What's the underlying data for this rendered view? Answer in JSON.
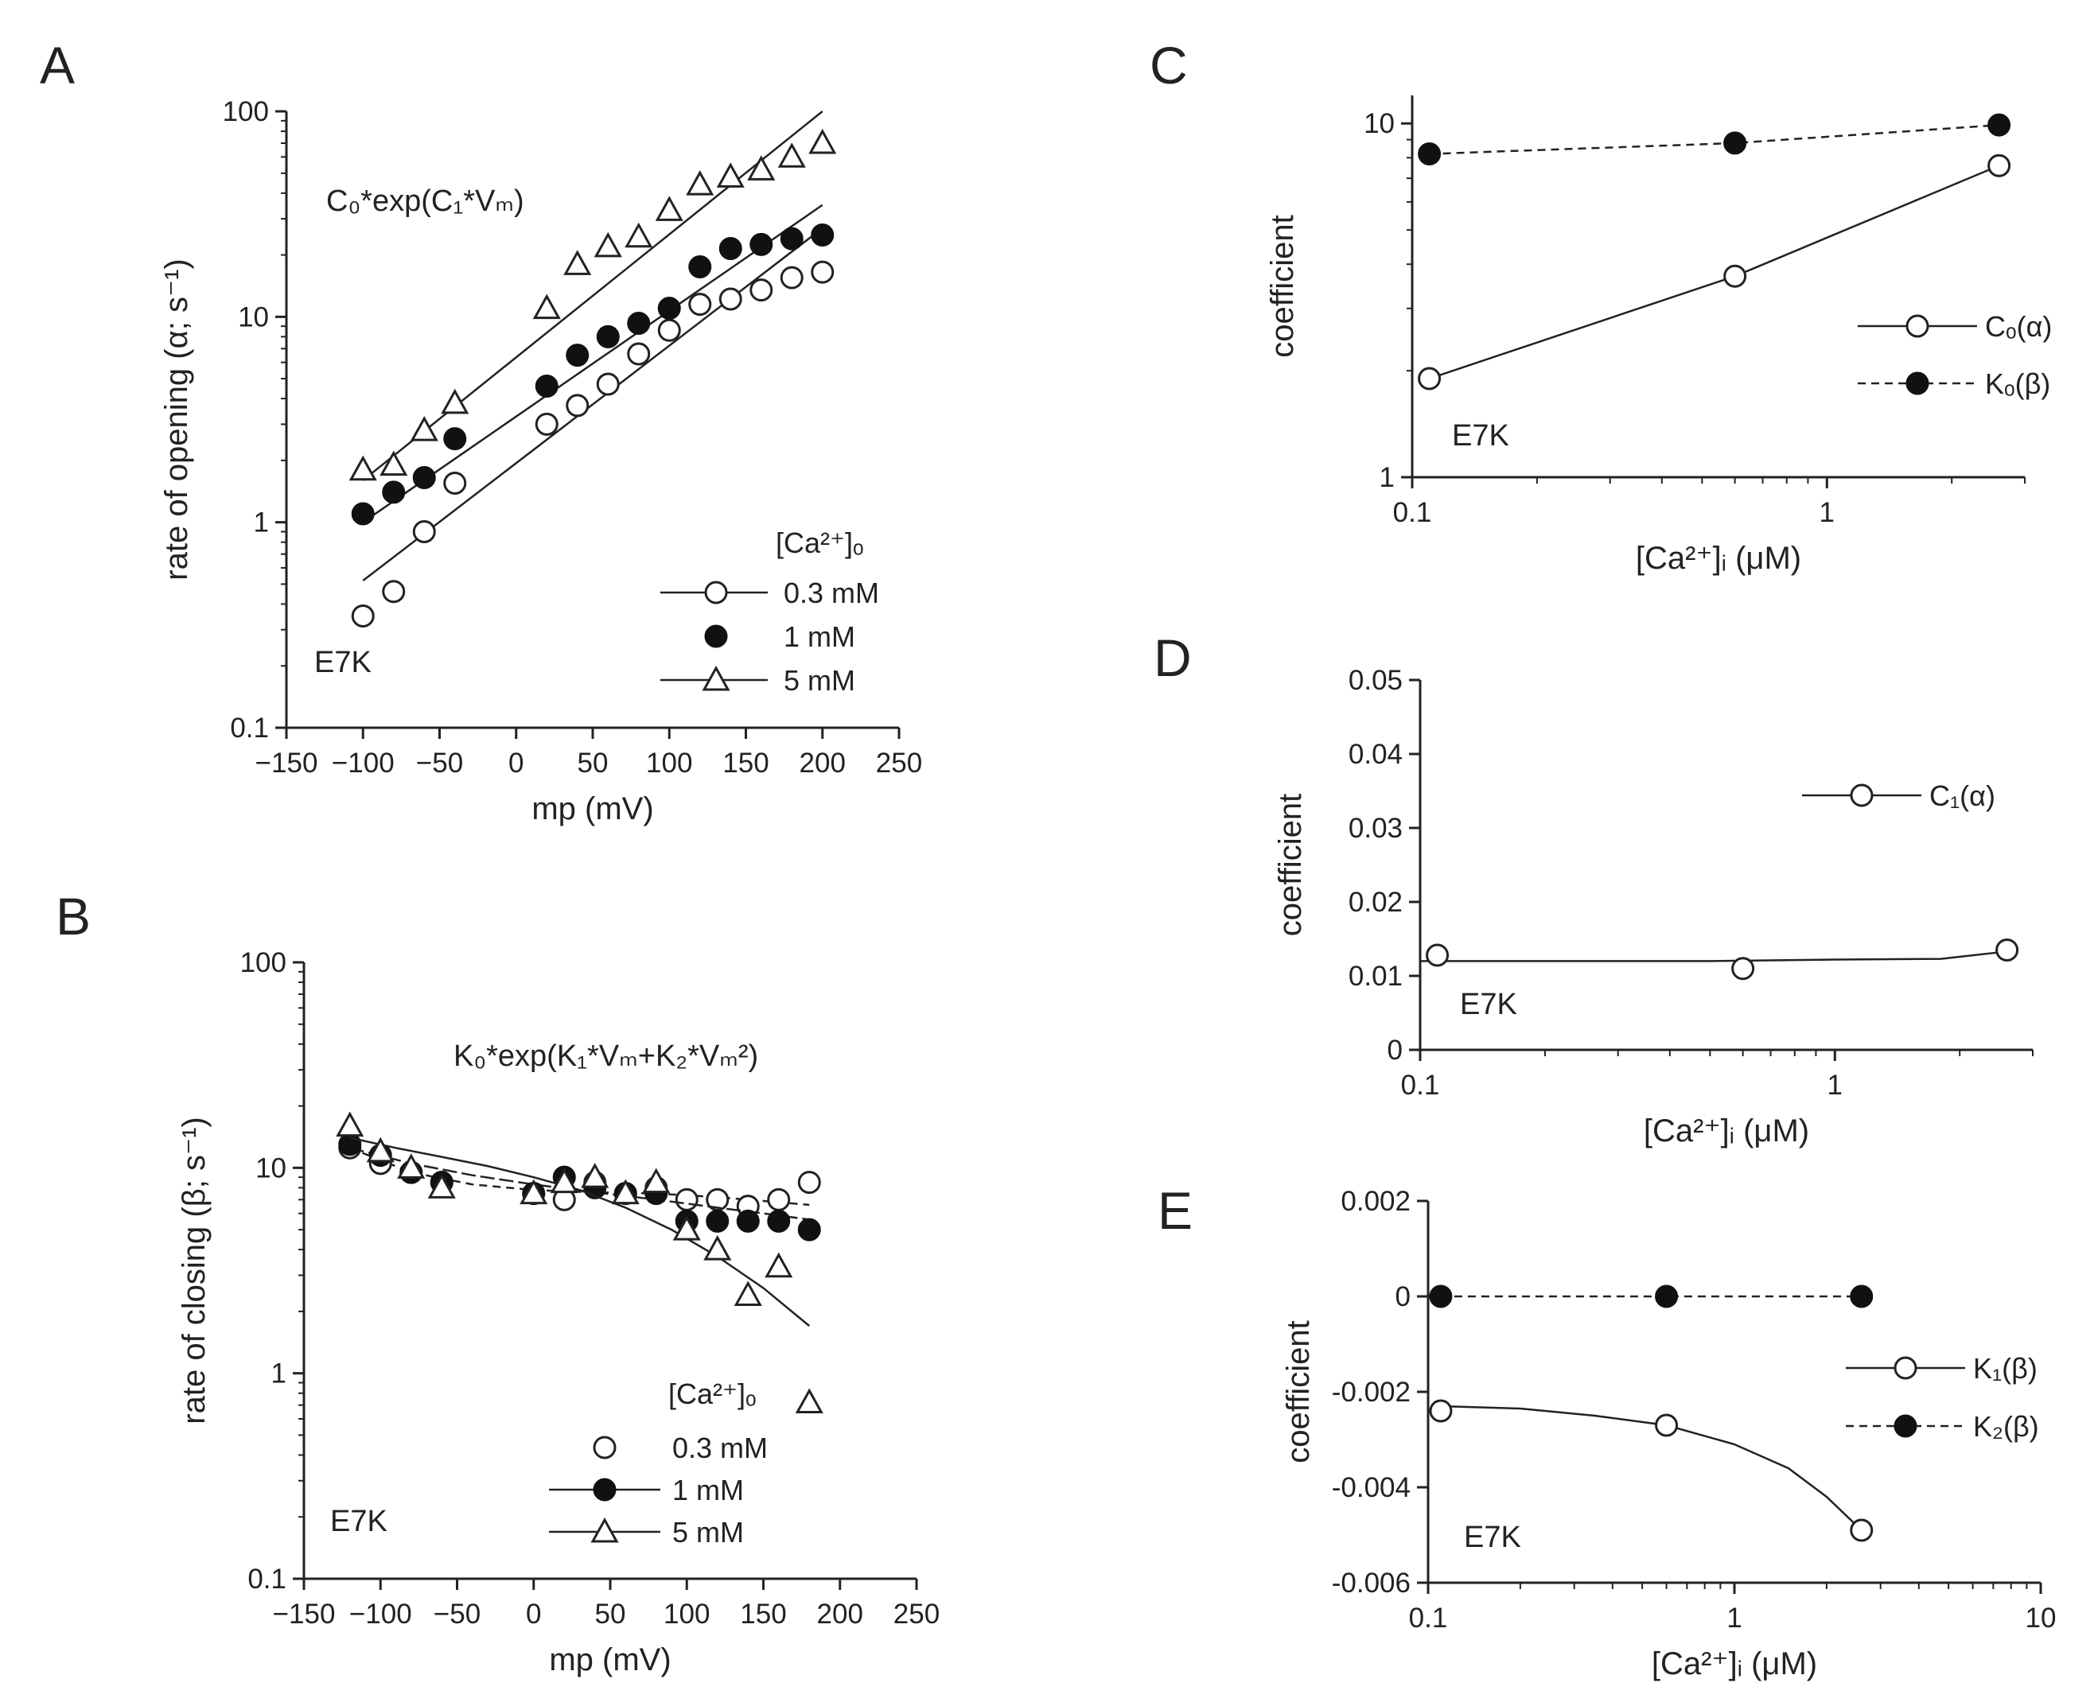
{
  "chart_data": [
    {
      "panel": "A",
      "type": "scatter",
      "yscale": "log",
      "xlim": [
        -150,
        250
      ],
      "ylim": [
        0.1,
        100
      ],
      "xticks": [
        -150,
        -100,
        -50,
        0,
        50,
        100,
        150,
        200,
        250
      ],
      "yticks": [
        0.1,
        1,
        10,
        100
      ],
      "xlabel": "mp (mV)",
      "ylabel": "rate of opening (α; s⁻¹)",
      "equation": "C0*exp(C1*Vm)",
      "legend_title": "[Ca2+]o",
      "annotation": "E7K",
      "series": [
        {
          "name": "0.3 mM",
          "marker": "open-circle",
          "fit": "line",
          "x": [
            -100,
            -80,
            -60,
            -40,
            20,
            40,
            60,
            80,
            100,
            120,
            140,
            160,
            180,
            200
          ],
          "y": [
            0.35,
            0.46,
            0.9,
            1.55,
            3.0,
            3.7,
            4.7,
            6.6,
            8.6,
            11.5,
            12.2,
            13.5,
            15.5,
            16.5
          ],
          "fit_x": [
            -100,
            200
          ],
          "fit_y": [
            0.52,
            27
          ]
        },
        {
          "name": "1 mM",
          "marker": "filled-circle",
          "fit": "line",
          "x": [
            -100,
            -80,
            -60,
            -40,
            20,
            40,
            60,
            80,
            100,
            120,
            140,
            160,
            180,
            200
          ],
          "y": [
            1.1,
            1.4,
            1.65,
            2.55,
            4.6,
            6.5,
            8.0,
            9.3,
            11.0,
            17.5,
            21.5,
            22.5,
            24.0,
            25.0
          ],
          "fit_x": [
            -100,
            200
          ],
          "fit_y": [
            1.0,
            35
          ]
        },
        {
          "name": "5 mM",
          "marker": "open-triangle",
          "fit": "line",
          "x": [
            -100,
            -80,
            -60,
            -40,
            20,
            40,
            60,
            80,
            100,
            120,
            140,
            160,
            180,
            200
          ],
          "y": [
            1.8,
            1.9,
            2.8,
            3.8,
            11.0,
            18.0,
            22.0,
            24.5,
            33.0,
            44.0,
            48.0,
            52.0,
            60.0,
            70.0
          ],
          "fit_x": [
            -100,
            200
          ],
          "fit_y": [
            1.6,
            100
          ]
        }
      ]
    },
    {
      "panel": "B",
      "type": "scatter",
      "yscale": "log",
      "xlim": [
        -150,
        250
      ],
      "ylim": [
        0.1,
        100
      ],
      "xticks": [
        -150,
        -100,
        -50,
        0,
        50,
        100,
        150,
        200,
        250
      ],
      "yticks": [
        0.1,
        1,
        10,
        100
      ],
      "xlabel": "mp (mV)",
      "ylabel": "rate of closing (β; s⁻¹)",
      "equation": "K0*exp(K1*Vm+K2*Vm^2)",
      "legend_title": "[Ca2+]o",
      "annotation": "E7K",
      "series": [
        {
          "name": "0.3 mM",
          "marker": "open-circle",
          "fit": "dashed",
          "x": [
            -120,
            -100,
            -80,
            -60,
            0,
            20,
            40,
            60,
            80,
            100,
            120,
            140,
            160,
            180
          ],
          "y": [
            12.5,
            10.5,
            9.5,
            8.5,
            7.5,
            7.0,
            8.5,
            7.5,
            8.0,
            7.0,
            7.0,
            6.5,
            7.0,
            8.5
          ],
          "fit_x": [
            -120,
            -80,
            -40,
            0,
            40,
            80,
            120,
            150,
            180
          ],
          "fit_y": [
            12.5,
            9.5,
            8.3,
            7.8,
            7.6,
            7.5,
            7.2,
            6.9,
            6.6
          ]
        },
        {
          "name": "1 mM",
          "marker": "filled-circle",
          "fit": "line-dashed",
          "x": [
            -120,
            -100,
            -80,
            -60,
            0,
            20,
            40,
            60,
            80,
            100,
            120,
            140,
            160,
            180
          ],
          "y": [
            13.0,
            11.5,
            9.5,
            8.5,
            7.5,
            9.0,
            8.0,
            7.5,
            7.5,
            5.5,
            5.5,
            5.5,
            5.5,
            5.0
          ],
          "fit_x": [
            -120,
            -80,
            -40,
            0,
            40,
            80,
            120,
            150,
            180
          ],
          "fit_y": [
            12.5,
            10.5,
            9.2,
            8.3,
            7.6,
            7.0,
            6.4,
            6.0,
            5.6
          ]
        },
        {
          "name": "5 mM",
          "marker": "open-triangle",
          "fit": "line",
          "x": [
            -120,
            -100,
            -80,
            -60,
            0,
            20,
            40,
            60,
            80,
            100,
            120,
            140,
            160,
            180
          ],
          "y": [
            16.0,
            12.0,
            10.0,
            8.0,
            7.5,
            8.5,
            9.0,
            7.5,
            8.5,
            5.0,
            4.0,
            2.4,
            3.3,
            0.72
          ],
          "fit_x": [
            -120,
            -90,
            -60,
            -30,
            0,
            30,
            60,
            90,
            120,
            150,
            180
          ],
          "fit_y": [
            14.0,
            12.5,
            11.3,
            10.2,
            9.0,
            7.8,
            6.4,
            5.0,
            3.7,
            2.6,
            1.7
          ]
        }
      ]
    },
    {
      "panel": "C",
      "type": "line",
      "xscale": "log",
      "yscale": "log",
      "xlim": [
        0.1,
        3
      ],
      "ylim": [
        1,
        12
      ],
      "xticks": [
        0.1,
        1
      ],
      "yticks": [
        1,
        10
      ],
      "xlabel": "[Ca2+]i (μM)",
      "ylabel": "coefficient",
      "annotation": "E7K",
      "series": [
        {
          "name": "Co(α)",
          "marker": "open-circle",
          "line": "solid",
          "x": [
            0.11,
            0.6,
            2.6
          ],
          "y": [
            1.9,
            3.7,
            7.6
          ]
        },
        {
          "name": "Ko(β)",
          "marker": "filled-circle",
          "line": "dashed",
          "x": [
            0.11,
            0.6,
            2.6
          ],
          "y": [
            8.2,
            8.8,
            9.9
          ]
        }
      ]
    },
    {
      "panel": "D",
      "type": "line",
      "xscale": "log",
      "xlim": [
        0.1,
        3
      ],
      "ylim": [
        0,
        0.05
      ],
      "xticks": [
        0.1,
        1
      ],
      "yticks": [
        0,
        0.01,
        0.02,
        0.03,
        0.04,
        0.05
      ],
      "xlabel": "[Ca2+]i (μM)",
      "ylabel": "coefficient",
      "annotation": "E7K",
      "series": [
        {
          "name": "C1(α)",
          "marker": "open-circle",
          "line": "solid",
          "x": [
            0.11,
            0.6,
            2.6
          ],
          "y": [
            0.0128,
            0.011,
            0.0135
          ],
          "fit_x": [
            0.1,
            0.5,
            1.0,
            1.8,
            2.6
          ],
          "fit_y": [
            0.012,
            0.012,
            0.0122,
            0.0123,
            0.0133
          ]
        }
      ]
    },
    {
      "panel": "E",
      "type": "line",
      "xscale": "log",
      "xlim": [
        0.1,
        10
      ],
      "ylim": [
        -0.006,
        0.002
      ],
      "xticks": [
        0.1,
        1,
        10
      ],
      "yticks": [
        -0.006,
        -0.004,
        -0.002,
        0,
        0.002
      ],
      "xlabel": "[Ca2+]i (μM)",
      "ylabel": "coefficient",
      "annotation": "E7K",
      "series": [
        {
          "name": "K1(β)",
          "marker": "open-circle",
          "line": "solid",
          "x": [
            0.11,
            0.6,
            2.6
          ],
          "y": [
            -0.0024,
            -0.0027,
            -0.0049
          ],
          "fit_x": [
            0.11,
            0.2,
            0.35,
            0.6,
            1.0,
            1.5,
            2.0,
            2.6
          ],
          "fit_y": [
            -0.0023,
            -0.00235,
            -0.0025,
            -0.0027,
            -0.0031,
            -0.0036,
            -0.0042,
            -0.0049
          ]
        },
        {
          "name": "K2(β)",
          "marker": "filled-circle",
          "line": "dashed",
          "x": [
            0.11,
            0.6,
            2.6
          ],
          "y": [
            0.0,
            0.0,
            0.0
          ]
        }
      ]
    }
  ],
  "panels": {
    "A": {
      "letter": "A",
      "yticks": [
        "0.1",
        "1",
        "10",
        "100"
      ],
      "xticks": [
        "−150",
        "−100",
        "−50",
        "0",
        "50",
        "100",
        "150",
        "200",
        "250"
      ],
      "xlabel": "mp (mV)",
      "ylabel": "rate of opening (α; s⁻¹)",
      "equation": "C₀*exp(C₁*Vₘ)",
      "legend_title": "[Ca²⁺]ₒ",
      "legend": [
        "0.3 mM",
        "1 mM",
        "5 mM"
      ],
      "annotation": "E7K"
    },
    "B": {
      "letter": "B",
      "yticks": [
        "0.1",
        "1",
        "10",
        "100"
      ],
      "xticks": [
        "−150",
        "−100",
        "−50",
        "0",
        "50",
        "100",
        "150",
        "200",
        "250"
      ],
      "xlabel": "mp (mV)",
      "ylabel": "rate of closing (β; s⁻¹)",
      "equation": "K₀*exp(K₁*Vₘ+K₂*Vₘ²)",
      "legend_title": "[Ca²⁺]ₒ",
      "legend": [
        "0.3 mM",
        "1 mM",
        "5 mM"
      ],
      "annotation": "E7K"
    },
    "C": {
      "letter": "C",
      "yticks": [
        "1",
        "10"
      ],
      "xticks": [
        "0.1",
        "1"
      ],
      "xlabel": "[Ca²⁺]ᵢ (μM)",
      "ylabel": "coefficient",
      "legend": [
        "Cₒ(α)",
        "Kₒ(β)"
      ],
      "annotation": "E7K"
    },
    "D": {
      "letter": "D",
      "yticks": [
        "0",
        "0.01",
        "0.02",
        "0.03",
        "0.04",
        "0.05"
      ],
      "xticks": [
        "0.1",
        "1"
      ],
      "xlabel": "[Ca²⁺]ᵢ (μM)",
      "ylabel": "coefficient",
      "legend": [
        "C₁(α)"
      ],
      "annotation": "E7K"
    },
    "E": {
      "letter": "E",
      "yticks": [
        "-0.006",
        "-0.004",
        "-0.002",
        "0",
        "0.002"
      ],
      "xticks": [
        "0.1",
        "1",
        "10"
      ],
      "xlabel": "[Ca²⁺]ᵢ (μM)",
      "ylabel": "coefficient",
      "legend": [
        "K₁(β)",
        "K₂(β)"
      ],
      "annotation": "E7K"
    }
  }
}
